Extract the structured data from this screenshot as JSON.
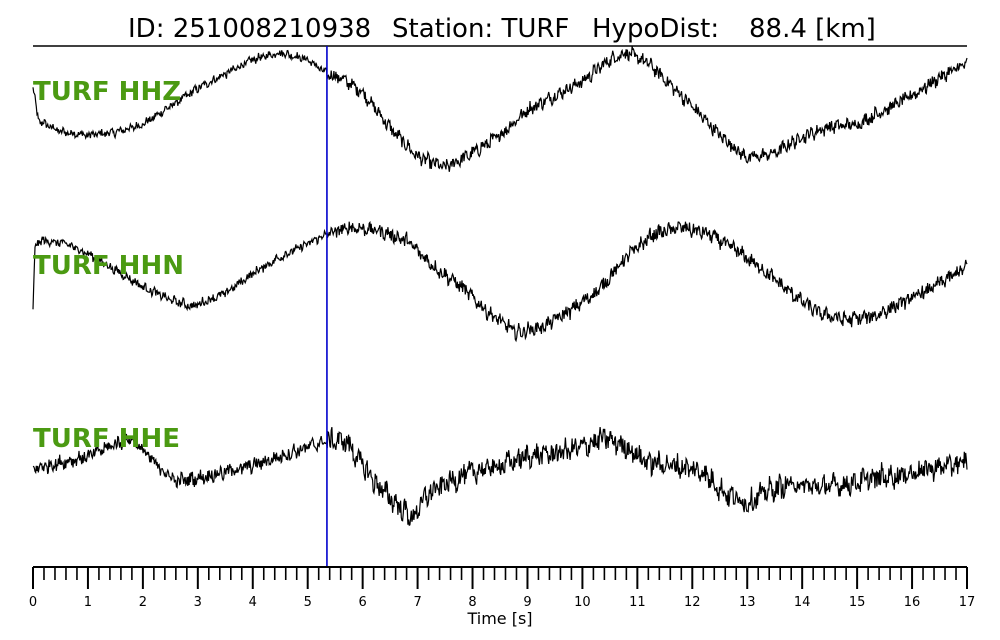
{
  "title": {
    "id": "ID: 251008210938",
    "station": "Station: TURF",
    "hypodist_label": "HypoDist:",
    "hypodist_value": "88.4 [km]"
  },
  "chart_data": {
    "type": "line",
    "title": "ID: 251008210938   Station: TURF   HypoDist:    88.4 [km]",
    "xlabel": "Time [s]",
    "xlim": [
      0,
      17
    ],
    "x_ticks": [
      "0",
      "1",
      "2",
      "3",
      "4",
      "5",
      "6",
      "7",
      "8",
      "9",
      "10",
      "11",
      "12",
      "13",
      "14",
      "15",
      "16",
      "17"
    ],
    "minor_tick_step": 0.2,
    "pick_time": 5.35,
    "pick_color": "#0000cc",
    "label_color": "#4b9a12",
    "trace_color": "#000000",
    "y_scale": "normalized amplitude (-1..1)",
    "series": [
      {
        "name": "TURF HHZ",
        "x": [
          0,
          0.1,
          0.5,
          1,
          1.5,
          2,
          2.5,
          3,
          3.5,
          4,
          4.5,
          5,
          5.35,
          5.6,
          6,
          6.5,
          7,
          7.5,
          8,
          8.5,
          9,
          9.5,
          10,
          10.5,
          10.8,
          11.2,
          11.6,
          12,
          12.5,
          13,
          13.5,
          14,
          14.5,
          15,
          15.5,
          16,
          16.5,
          17
        ],
        "y": [
          0.55,
          0.1,
          -0.05,
          -0.1,
          -0.06,
          0.05,
          0.3,
          0.55,
          0.75,
          0.95,
          1.05,
          0.95,
          0.75,
          0.7,
          0.5,
          0.0,
          -0.4,
          -0.55,
          -0.35,
          -0.1,
          0.25,
          0.45,
          0.65,
          0.95,
          1.05,
          0.9,
          0.6,
          0.3,
          -0.1,
          -0.42,
          -0.35,
          -0.12,
          0.02,
          0.05,
          0.25,
          0.45,
          0.7,
          0.9
        ],
        "noise": 0.06
      },
      {
        "name": "TURF HHN",
        "x": [
          0,
          0.04,
          0.2,
          0.6,
          1,
          1.5,
          2,
          2.5,
          2.9,
          3.5,
          4,
          4.5,
          5,
          5.35,
          5.8,
          6.3,
          6.8,
          7.3,
          7.8,
          8.3,
          8.8,
          9.3,
          9.8,
          10.3,
          10.8,
          11.3,
          11.8,
          12.3,
          12.8,
          13.3,
          13.8,
          14.3,
          14.8,
          15.3,
          15.8,
          16.3,
          17
        ],
        "y": [
          -0.3,
          0.7,
          0.75,
          0.7,
          0.55,
          0.3,
          0.05,
          -0.15,
          -0.25,
          -0.05,
          0.25,
          0.5,
          0.7,
          0.85,
          0.95,
          0.9,
          0.75,
          0.35,
          0.05,
          -0.35,
          -0.65,
          -0.55,
          -0.3,
          0.0,
          0.5,
          0.85,
          0.95,
          0.85,
          0.6,
          0.3,
          -0.05,
          -0.35,
          -0.45,
          -0.4,
          -0.2,
          0.0,
          0.35
        ],
        "noise": 0.07
      },
      {
        "name": "TURF HHE",
        "x": [
          0,
          0.5,
          1,
          1.5,
          1.8,
          2.2,
          2.6,
          3,
          3.5,
          4,
          4.5,
          5,
          5.35,
          5.7,
          6,
          6.3,
          6.6,
          6.9,
          7.2,
          7.6,
          8,
          8.5,
          9,
          9.5,
          10,
          10.4,
          10.8,
          11.2,
          11.7,
          12.2,
          12.6,
          13,
          13.4,
          13.8,
          14.3,
          14.8,
          15.3,
          15.8,
          16.3,
          17
        ],
        "y": [
          0.1,
          0.2,
          0.3,
          0.5,
          0.6,
          0.2,
          -0.1,
          -0.05,
          0.05,
          0.15,
          0.3,
          0.45,
          0.55,
          0.55,
          0.15,
          -0.2,
          -0.45,
          -0.7,
          -0.3,
          -0.1,
          0.05,
          0.15,
          0.3,
          0.35,
          0.45,
          0.6,
          0.45,
          0.2,
          0.15,
          0.05,
          -0.3,
          -0.45,
          -0.25,
          -0.15,
          -0.2,
          -0.15,
          -0.05,
          0.0,
          0.1,
          0.2
        ],
        "noise": 0.12
      }
    ]
  }
}
